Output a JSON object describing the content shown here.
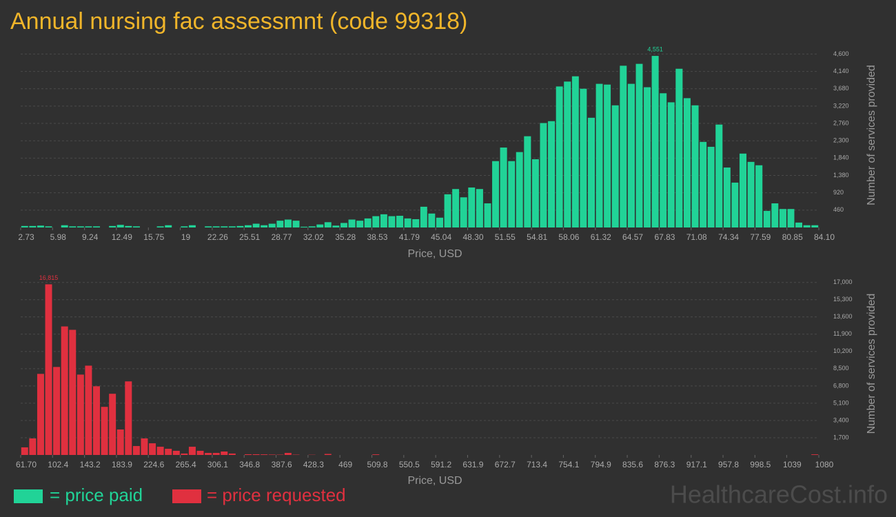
{
  "title": "Annual nursing fac assessmnt (code 99318)",
  "watermark": "HealthcareCost.info",
  "chart_data": [
    {
      "type": "histogram",
      "xlabel": "Price, USD",
      "ylabel": "Number of services provided",
      "grid": true,
      "bins": [
        2.73,
        3.54,
        4.36,
        5.17,
        5.98,
        6.8,
        7.61,
        8.43,
        9.24,
        10.05,
        10.87,
        11.68,
        12.49,
        13.31,
        14.12,
        14.94,
        15.75,
        16.56,
        17.38,
        18.19,
        19.0,
        19.82,
        20.63,
        21.45,
        22.26,
        23.07,
        23.89,
        24.7,
        25.51,
        26.33,
        27.14,
        27.95,
        28.77,
        29.58,
        30.4,
        31.21,
        32.02,
        32.84,
        33.65,
        34.46,
        35.28,
        36.09,
        36.91,
        37.72,
        38.53,
        39.35,
        40.16,
        40.97,
        41.79,
        42.6,
        43.42,
        44.23,
        45.04,
        45.86,
        46.67,
        47.48,
        48.3,
        49.11,
        49.93,
        50.74,
        51.55,
        52.37,
        53.18,
        53.99,
        54.81,
        55.62,
        56.43,
        57.25,
        58.06,
        58.88,
        59.69,
        60.5,
        61.32,
        62.13,
        62.94,
        63.76,
        64.57,
        65.39,
        66.2,
        67.01,
        67.83,
        68.64,
        69.45,
        70.27,
        71.08,
        71.9,
        72.71,
        73.52,
        74.34,
        75.15,
        75.96,
        76.78,
        77.59,
        78.41,
        79.22,
        80.03,
        80.85,
        81.66,
        82.47,
        83.29,
        84.1
      ],
      "series": [
        {
          "name": "= price paid",
          "color": "#21d397",
          "values": [
            40,
            40,
            50,
            30,
            0,
            60,
            30,
            30,
            30,
            30,
            0,
            40,
            70,
            40,
            30,
            0,
            0,
            30,
            60,
            0,
            30,
            60,
            0,
            30,
            30,
            30,
            30,
            40,
            60,
            100,
            60,
            100,
            180,
            210,
            180,
            20,
            30,
            80,
            140,
            50,
            120,
            210,
            180,
            240,
            300,
            350,
            300,
            310,
            240,
            220,
            550,
            370,
            260,
            880,
            1020,
            800,
            1060,
            1020,
            640,
            1760,
            2120,
            1760,
            2000,
            2420,
            1810,
            2770,
            2820,
            3740,
            3870,
            4010,
            3680,
            2910,
            3810,
            3790,
            3240,
            4290,
            3810,
            4340,
            3720,
            4551,
            3560,
            3320,
            4210,
            3430,
            3240,
            2270,
            2140,
            2730,
            1590,
            1190,
            1960,
            1740,
            1650,
            440,
            640,
            490,
            490,
            130,
            60,
            60
          ],
          "value_labels": [
            null,
            null,
            null,
            null,
            null,
            null,
            null,
            null,
            null,
            null,
            null,
            null,
            null,
            null,
            null,
            null,
            null,
            null,
            null,
            null,
            null,
            null,
            null,
            null,
            null,
            null,
            null,
            null,
            null,
            null,
            null,
            null,
            null,
            null,
            null,
            null,
            null,
            null,
            null,
            null,
            null,
            null,
            null,
            null,
            null,
            null,
            null,
            null,
            null,
            null,
            null,
            null,
            null,
            null,
            null,
            null,
            null,
            null,
            null,
            null,
            null,
            null,
            null,
            null,
            null,
            null,
            null,
            null,
            null,
            null,
            null,
            null,
            null,
            null,
            null,
            null,
            null,
            null,
            null,
            "4,551",
            null,
            null,
            null,
            null,
            null,
            null,
            null,
            null,
            null,
            null,
            null,
            null,
            null,
            null,
            null,
            null,
            null,
            null,
            null,
            null
          ]
        }
      ],
      "xlim": [
        2.73,
        84.1
      ],
      "xticks": [
        2.73,
        5.98,
        9.24,
        12.49,
        15.75,
        19,
        22.26,
        25.51,
        28.77,
        32.02,
        35.28,
        38.53,
        41.79,
        45.04,
        {
          "value": 48.3,
          "label": "48.30"
        },
        51.55,
        54.81,
        58.06,
        61.32,
        64.57,
        67.83,
        71.08,
        74.34,
        77.59,
        80.85,
        {
          "value": 84.1,
          "label": "84.10"
        }
      ],
      "ylim": [
        0,
        4900
      ],
      "yticks": [
        460,
        920,
        {
          "value": 1380,
          "label": "1,380"
        },
        {
          "value": 1840,
          "label": "1,840"
        },
        {
          "value": 2300,
          "label": "2,300"
        },
        {
          "value": 2760,
          "label": "2,760"
        },
        {
          "value": 3220,
          "label": "3,220"
        },
        {
          "value": 3680,
          "label": "3,680"
        },
        {
          "value": 4140,
          "label": "4,140"
        },
        {
          "value": 4600,
          "label": "4,600"
        }
      ]
    },
    {
      "type": "histogram",
      "xlabel": "Price, USD",
      "ylabel": "Number of services provided",
      "grid": true,
      "bins": [
        61.7,
        71.88,
        82.07,
        92.25,
        102.43,
        112.61,
        122.8,
        132.98,
        143.16,
        153.34,
        163.53,
        173.71,
        183.89,
        194.07,
        204.26,
        214.44,
        224.62,
        234.8,
        244.99,
        255.17,
        265.35,
        275.53,
        285.72,
        295.9,
        306.08,
        316.26,
        326.45,
        336.63,
        346.81,
        356.99,
        367.18,
        377.36,
        387.54,
        397.72,
        407.91,
        418.09,
        428.27,
        438.45,
        448.64,
        458.82,
        469.0,
        479.18,
        489.37,
        499.55,
        509.73,
        519.91,
        530.1,
        540.28,
        550.46,
        560.64,
        570.83,
        581.01,
        591.19,
        601.37,
        611.56,
        621.74,
        631.92,
        642.1,
        652.29,
        662.47,
        672.65,
        682.83,
        693.02,
        703.2,
        713.38,
        723.56,
        733.75,
        743.93,
        754.11,
        764.29,
        774.48,
        784.66,
        794.84,
        805.02,
        815.21,
        825.39,
        835.57,
        845.75,
        855.94,
        866.12,
        876.3,
        886.48,
        896.67,
        906.85,
        917.03,
        927.21,
        937.4,
        947.58,
        957.76,
        967.94,
        978.13,
        988.31,
        998.49,
        1008.67,
        1018.86,
        1029.04,
        1039.22,
        1049.4,
        1059.59,
        1069.77,
        1079.95
      ],
      "series": [
        {
          "name": "= price requested",
          "color": "#e0303f",
          "values": [
            750,
            1630,
            7990,
            16815,
            8670,
            12665,
            12330,
            7920,
            8800,
            6770,
            4740,
            6030,
            2510,
            7250,
            880,
            1630,
            1150,
            810,
            610,
            410,
            140,
            810,
            410,
            200,
            200,
            340,
            140,
            0,
            70,
            70,
            60,
            40,
            30,
            200,
            30,
            0,
            20,
            0,
            100,
            0,
            0,
            0,
            0,
            0,
            60,
            0,
            0,
            0,
            0,
            0,
            0,
            0,
            0,
            0,
            0,
            0,
            0,
            0,
            0,
            0,
            0,
            0,
            0,
            0,
            0,
            0,
            0,
            0,
            0,
            0,
            0,
            0,
            0,
            0,
            0,
            0,
            0,
            0,
            0,
            0,
            0,
            0,
            0,
            0,
            0,
            0,
            0,
            0,
            0,
            0,
            0,
            0,
            0,
            0,
            0,
            0,
            0,
            0,
            0,
            60
          ],
          "value_labels": [
            null,
            null,
            null,
            "16,815",
            null,
            null,
            null,
            null,
            null,
            null,
            null,
            null,
            null,
            null,
            null,
            null,
            null,
            null,
            null,
            null,
            null,
            null,
            null,
            null,
            null,
            null,
            null,
            null,
            null,
            null,
            null,
            null,
            null,
            null,
            null,
            null,
            null,
            null,
            null,
            null,
            null,
            null,
            null,
            null,
            null,
            null,
            null,
            null,
            null,
            null,
            null,
            null,
            null,
            null,
            null,
            null,
            null,
            null,
            null,
            null,
            null,
            null,
            null,
            null,
            null,
            null,
            null,
            null,
            null,
            null,
            null,
            null,
            null,
            null,
            null,
            null,
            null,
            null,
            null,
            null,
            null,
            null,
            null,
            null,
            null,
            null,
            null,
            null,
            null,
            null,
            null,
            null,
            null,
            null,
            null,
            null,
            null,
            null,
            null,
            null
          ]
        }
      ],
      "xlim": [
        61.7,
        1080
      ],
      "xticks": [
        {
          "value": 61.7,
          "label": "61.70"
        },
        102.4,
        143.2,
        183.9,
        224.6,
        265.4,
        306.1,
        346.8,
        387.6,
        428.3,
        469,
        509.8,
        550.5,
        591.2,
        631.9,
        672.7,
        713.4,
        754.1,
        794.9,
        835.6,
        876.3,
        917.1,
        957.8,
        998.5,
        1039,
        1080
      ],
      "ylim": [
        0,
        18000
      ],
      "yticks": [
        {
          "value": 1700,
          "label": "1,700"
        },
        {
          "value": 3400,
          "label": "3,400"
        },
        {
          "value": 5100,
          "label": "5,100"
        },
        {
          "value": 6800,
          "label": "6,800"
        },
        {
          "value": 8500,
          "label": "8,500"
        },
        {
          "value": 10200,
          "label": "10,200"
        },
        {
          "value": 11900,
          "label": "11,900"
        },
        {
          "value": 13600,
          "label": "13,600"
        },
        {
          "value": 15300,
          "label": "15,300"
        },
        {
          "value": 17000,
          "label": "17,000"
        }
      ]
    }
  ]
}
